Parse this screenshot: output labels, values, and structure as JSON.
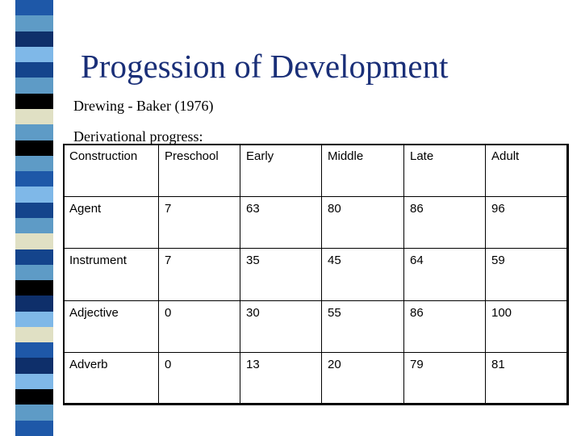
{
  "slide": {
    "title": "Progession of Development",
    "source": "Drewing -  Baker (1976)",
    "caption": "Derivational progress:"
  },
  "strip_colors": [
    "#1e58a8",
    "#5e9bc6",
    "#0e2f6a",
    "#7fb8e8",
    "#14448c",
    "#5e9bc6",
    "#000000",
    "#e0e0c4",
    "#5e9bc6",
    "#000000",
    "#5e9bc6",
    "#1e58a8",
    "#7fb8e8",
    "#14448c",
    "#5e9bc6",
    "#e0e0c4",
    "#14448c",
    "#5e9bc6",
    "#000000",
    "#0e2f6a",
    "#7fb8e8",
    "#e0e0c4",
    "#1e58a8",
    "#0e2f6a",
    "#7fb8e8",
    "#000000",
    "#5e9bc6",
    "#1e58a8"
  ],
  "table": {
    "headers": [
      "Construction",
      "Preschool",
      "Early",
      "Middle",
      "Late",
      "Adult"
    ],
    "rows": [
      [
        "Agent",
        "7",
        "63",
        "80",
        "86",
        "96"
      ],
      [
        "Instrument",
        "7",
        "35",
        "45",
        "64",
        "59"
      ],
      [
        "Adjective",
        "0",
        "30",
        "55",
        "86",
        "100"
      ],
      [
        "Adverb",
        "0",
        "13",
        "20",
        "79",
        "81"
      ]
    ]
  }
}
